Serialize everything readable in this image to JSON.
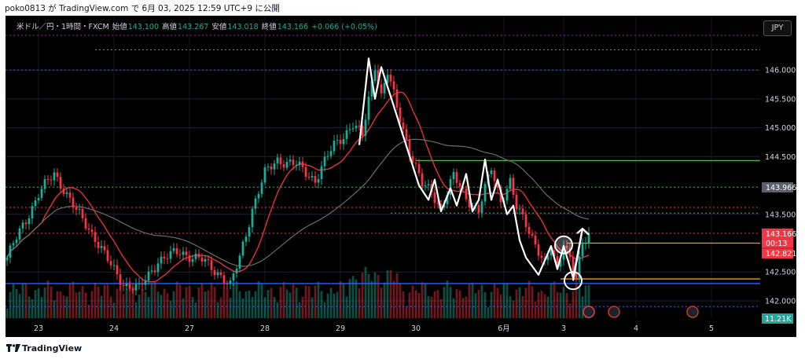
{
  "header": {
    "caption": "poko0813 が TradingView.com で 6月 03, 2025 12:59 UTC+9 に公開"
  },
  "legend": {
    "symbol": "米ドル／円・1時間・FXCM",
    "open_label": "始値",
    "open": "143.100",
    "high_label": "高値",
    "high": "143.267",
    "low_label": "安値",
    "low": "143.018",
    "close_label": "終値",
    "close": "143.166",
    "change": "+0.066 (+0.05%)"
  },
  "currency_button": "JPY",
  "brand": "TradingView",
  "colors": {
    "up": "#22ab94",
    "down": "#f23645",
    "ma_fast": "#e5303a",
    "ma_slow": "#6b6b6b",
    "horizontal_blue": "#2962ff",
    "horizontal_green": "#4caf50",
    "horizontal_orange": "#ff9800",
    "price_tag_red": "#f23645",
    "price_tag_gray": "#5d606b",
    "volume_tag": "#26a69a"
  },
  "chart_data": {
    "type": "candlestick",
    "ylim": [
      141.7,
      146.75
    ],
    "y_ticks": [
      "146.000",
      "145.500",
      "145.000",
      "144.500",
      "143.500",
      "142.500",
      "142.000"
    ],
    "x_ticks": [
      {
        "label": "23",
        "index": 10
      },
      {
        "label": "24",
        "index": 34
      },
      {
        "label": "27",
        "index": 58
      },
      {
        "label": "28",
        "index": 82
      },
      {
        "label": "29",
        "index": 106
      },
      {
        "label": "30",
        "index": 130
      },
      {
        "label": "6月",
        "index": 158
      },
      {
        "label": "3",
        "index": 177
      },
      {
        "label": "4",
        "index": 200
      },
      {
        "label": "5",
        "index": 224
      }
    ],
    "candle_count": 186,
    "slots": 240,
    "anchors": [
      [
        0,
        142.75
      ],
      [
        5,
        143.3
      ],
      [
        10,
        143.85
      ],
      [
        15,
        144.2
      ],
      [
        18,
        143.95
      ],
      [
        22,
        143.55
      ],
      [
        28,
        143.1
      ],
      [
        33,
        142.6
      ],
      [
        37,
        142.3
      ],
      [
        42,
        142.2
      ],
      [
        48,
        142.7
      ],
      [
        55,
        142.85
      ],
      [
        62,
        142.7
      ],
      [
        68,
        142.45
      ],
      [
        71,
        142.25
      ],
      [
        74,
        142.75
      ],
      [
        78,
        143.6
      ],
      [
        82,
        144.2
      ],
      [
        86,
        144.45
      ],
      [
        92,
        144.35
      ],
      [
        98,
        144.1
      ],
      [
        104,
        144.7
      ],
      [
        110,
        145.05
      ],
      [
        113,
        144.85
      ],
      [
        115,
        145.5
      ],
      [
        117,
        146.1
      ],
      [
        119,
        145.55
      ],
      [
        121,
        145.95
      ],
      [
        124,
        145.35
      ],
      [
        128,
        144.6
      ],
      [
        132,
        144.0
      ],
      [
        135,
        143.9
      ],
      [
        138,
        143.6
      ],
      [
        142,
        144.15
      ],
      [
        146,
        143.8
      ],
      [
        150,
        143.55
      ],
      [
        154,
        144.3
      ],
      [
        157,
        143.75
      ],
      [
        160,
        144.05
      ],
      [
        162,
        143.6
      ],
      [
        165,
        143.35
      ],
      [
        168,
        143.0
      ],
      [
        171,
        142.6
      ],
      [
        173,
        142.9
      ],
      [
        175,
        142.55
      ],
      [
        177,
        143.05
      ],
      [
        179,
        142.75
      ],
      [
        181,
        142.35
      ],
      [
        183,
        142.95
      ],
      [
        185,
        143.17
      ]
    ],
    "volume_tag": "11.21K",
    "levels": [
      {
        "name": "blue-top",
        "value": 146.6,
        "style": "dotted",
        "color": "#9c27b0"
      },
      {
        "name": "green-dotted-top",
        "value": 146.35,
        "style": "dotted",
        "color": "#4caf50"
      },
      {
        "name": "blue-dotted-146",
        "value": 146.0,
        "style": "dotted",
        "color": "#2962ff"
      },
      {
        "name": "green-solid",
        "value": 144.43,
        "style": "solid",
        "color": "#4caf50"
      },
      {
        "name": "green-dotted-mid",
        "value": 143.97,
        "style": "dotted",
        "color": "#4caf50"
      },
      {
        "name": "red-dotted-upper",
        "value": 143.62,
        "style": "dotted",
        "color": "#f23645"
      },
      {
        "name": "green-dotted-low",
        "value": 143.52,
        "style": "dotted",
        "color": "#4caf50"
      },
      {
        "name": "red-dotted-lower",
        "value": 143.17,
        "style": "dotted",
        "color": "#f23645"
      },
      {
        "name": "orange-solid-upper",
        "value": 143.0,
        "style": "solid",
        "color": "#ff9800"
      },
      {
        "name": "orange-solid-lower",
        "value": 142.38,
        "style": "solid",
        "color": "#ff9800"
      },
      {
        "name": "blue-solid",
        "value": 142.3,
        "style": "solid",
        "color": "#2962ff"
      },
      {
        "name": "blue-dotted-bottom",
        "value": 141.9,
        "style": "dotted",
        "color": "#2962ff"
      }
    ],
    "price_tags": [
      {
        "label": "143.966",
        "value": 143.966,
        "kind": "gray"
      },
      {
        "label": "143.166",
        "value": 143.166,
        "kind": "red"
      },
      {
        "label": "00:13",
        "value": 143.0,
        "kind": "red"
      },
      {
        "label": "142.821",
        "value": 142.821,
        "kind": "red"
      }
    ],
    "wave_path": [
      [
        112,
        144.7
      ],
      [
        115,
        146.2
      ],
      [
        117,
        145.5
      ],
      [
        119,
        146.05
      ],
      [
        124,
        145.2
      ],
      [
        126,
        144.85
      ],
      [
        131,
        144.0
      ],
      [
        134,
        143.75
      ],
      [
        136,
        144.1
      ],
      [
        138,
        143.55
      ],
      [
        141,
        143.95
      ],
      [
        143,
        143.65
      ],
      [
        146,
        144.2
      ],
      [
        148,
        143.55
      ],
      [
        150,
        143.75
      ],
      [
        152,
        144.45
      ],
      [
        154,
        143.75
      ],
      [
        156,
        144.1
      ],
      [
        159,
        143.5
      ],
      [
        161,
        143.65
      ],
      [
        163,
        143.05
      ],
      [
        165,
        142.75
      ],
      [
        169,
        142.45
      ],
      [
        173,
        142.95
      ],
      [
        175,
        142.55
      ],
      [
        177,
        142.95
      ],
      [
        180,
        142.4
      ],
      [
        183,
        143.25
      ],
      [
        185,
        143.15
      ]
    ],
    "wave_arrow": {
      "from": [
        180,
        142.35
      ],
      "to": [
        183,
        143.25
      ]
    },
    "circles": [
      [
        177,
        142.97
      ],
      [
        180,
        142.35
      ]
    ]
  }
}
